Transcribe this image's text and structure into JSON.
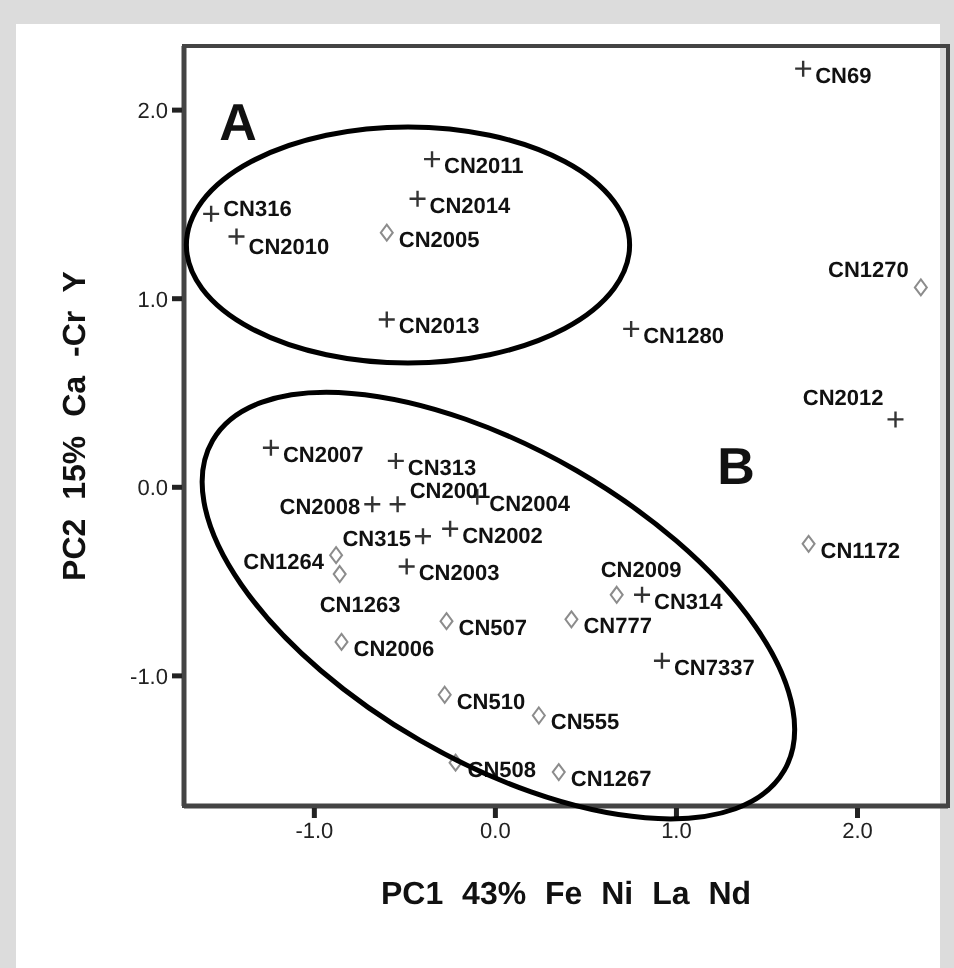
{
  "chart_data": {
    "type": "scatter",
    "xlabel": "PC1 43% Fe Ni La Nd",
    "ylabel": "PC2 15% Ca -Cr Y",
    "xlim": [
      -1.72,
      2.5
    ],
    "ylim": [
      -1.69,
      2.34
    ],
    "xticks": [
      {
        "value": -1,
        "label": "-1.0"
      },
      {
        "value": 0,
        "label": "0.0"
      },
      {
        "value": 1,
        "label": "1.0"
      },
      {
        "value": 2,
        "label": "2.0"
      }
    ],
    "yticks": [
      {
        "value": -1,
        "label": "-1.0"
      },
      {
        "value": 0,
        "label": "0.0"
      },
      {
        "value": 1,
        "label": "1.0"
      },
      {
        "value": 2,
        "label": "2.0"
      }
    ],
    "grid": false,
    "legend": false,
    "series": [
      {
        "color": "#333333",
        "marker": "cross",
        "x": [
          1.7,
          -0.35,
          -0.43,
          -1.57,
          -1.43,
          -0.6,
          0.75,
          2.21,
          -1.24,
          -0.55,
          -0.68,
          -0.54,
          -0.1,
          -0.4,
          -0.49,
          0.81,
          0.92,
          -0.25
        ],
        "values": [
          2.22,
          1.74,
          1.53,
          1.45,
          1.33,
          0.89,
          0.84,
          0.36,
          0.21,
          0.14,
          -0.09,
          -0.09,
          -0.05,
          -0.26,
          -0.42,
          -0.57,
          -0.92,
          -0.22
        ],
        "value_labels": [
          "CN69",
          "CN2011",
          "CN2014",
          "CN316",
          "CN2010",
          "CN2013",
          "CN1280",
          "CN2012",
          "CN2007",
          "CN313",
          "CN2008",
          "CN2001",
          "CN2004",
          "CN315",
          "CN2003",
          "CN314",
          "CN7337",
          "CN2002"
        ]
      },
      {
        "color": "#8c8c8c",
        "marker": "diamond",
        "x": [
          -0.6,
          2.35,
          -0.88,
          -0.86,
          -0.85,
          -0.27,
          0.42,
          0.67,
          -0.28,
          0.24,
          0.35,
          1.73,
          -0.22
        ],
        "values": [
          1.35,
          1.06,
          -0.36,
          -0.46,
          -0.82,
          -0.71,
          -0.7,
          -0.57,
          -1.1,
          -1.21,
          -1.51,
          -0.3,
          -1.46
        ],
        "value_labels": [
          "CN2005",
          "CN1270",
          "CN1264",
          "CN1263",
          "CN2006",
          "CN507",
          "CN777",
          "CN2009",
          "CN510",
          "CN555",
          "CN1267",
          "CN1172",
          "CN508"
        ]
      }
    ],
    "annotations": [
      "A",
      "B"
    ]
  }
}
